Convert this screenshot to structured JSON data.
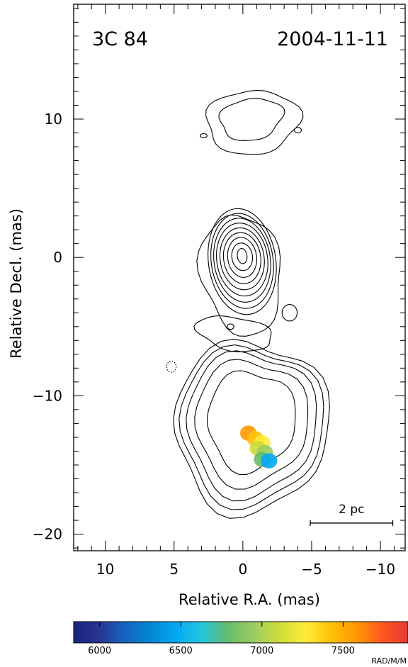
{
  "chart_data": {
    "type": "contour",
    "source_label": "3C 84",
    "epoch_label": "2004-11-11",
    "xlabel": "Relative R.A. (mas)",
    "ylabel": "Relative Decl. (mas)",
    "xlim": [
      12.3,
      -11.8
    ],
    "ylim": [
      -21.2,
      18.3
    ],
    "xticks": [
      10,
      5,
      0,
      -5,
      -10
    ],
    "xtick_labels": [
      "10",
      "5",
      "0",
      "−5",
      "−10"
    ],
    "yticks": [
      10,
      0,
      -10,
      -20
    ],
    "ytick_labels": [
      "10",
      "0",
      "−10",
      "−20"
    ],
    "scale_bar": {
      "label": "2 pc",
      "x_from": -4.9,
      "x_to": -10.9,
      "y": -19.2
    },
    "colorbar": {
      "unit_label": "RAD/M/M",
      "range": [
        5840,
        7900
      ],
      "ticks": [
        6000,
        6500,
        7000,
        7500
      ],
      "tick_labels": [
        "6000",
        "6500",
        "7000",
        "7500"
      ],
      "colors": [
        "#1a237e",
        "#283593",
        "#1565c0",
        "#0288d1",
        "#03a9f4",
        "#26c6da",
        "#66bb6a",
        "#9ccc65",
        "#cddc39",
        "#ffeb3b",
        "#ffc107",
        "#ff9800",
        "#ff5722",
        "#e53935"
      ]
    },
    "rm_blobs": [
      {
        "x": -0.4,
        "y": -12.7,
        "rm": 7600
      },
      {
        "x": -0.9,
        "y": -13.1,
        "rm": 7400
      },
      {
        "x": -1.4,
        "y": -13.4,
        "rm": 7250
      },
      {
        "x": -1.1,
        "y": -13.8,
        "rm": 7150
      },
      {
        "x": -1.6,
        "y": -14.1,
        "rm": 7000
      },
      {
        "x": -1.4,
        "y": -14.6,
        "rm": 6750
      },
      {
        "x": -1.9,
        "y": -14.7,
        "rm": 6550
      }
    ]
  }
}
